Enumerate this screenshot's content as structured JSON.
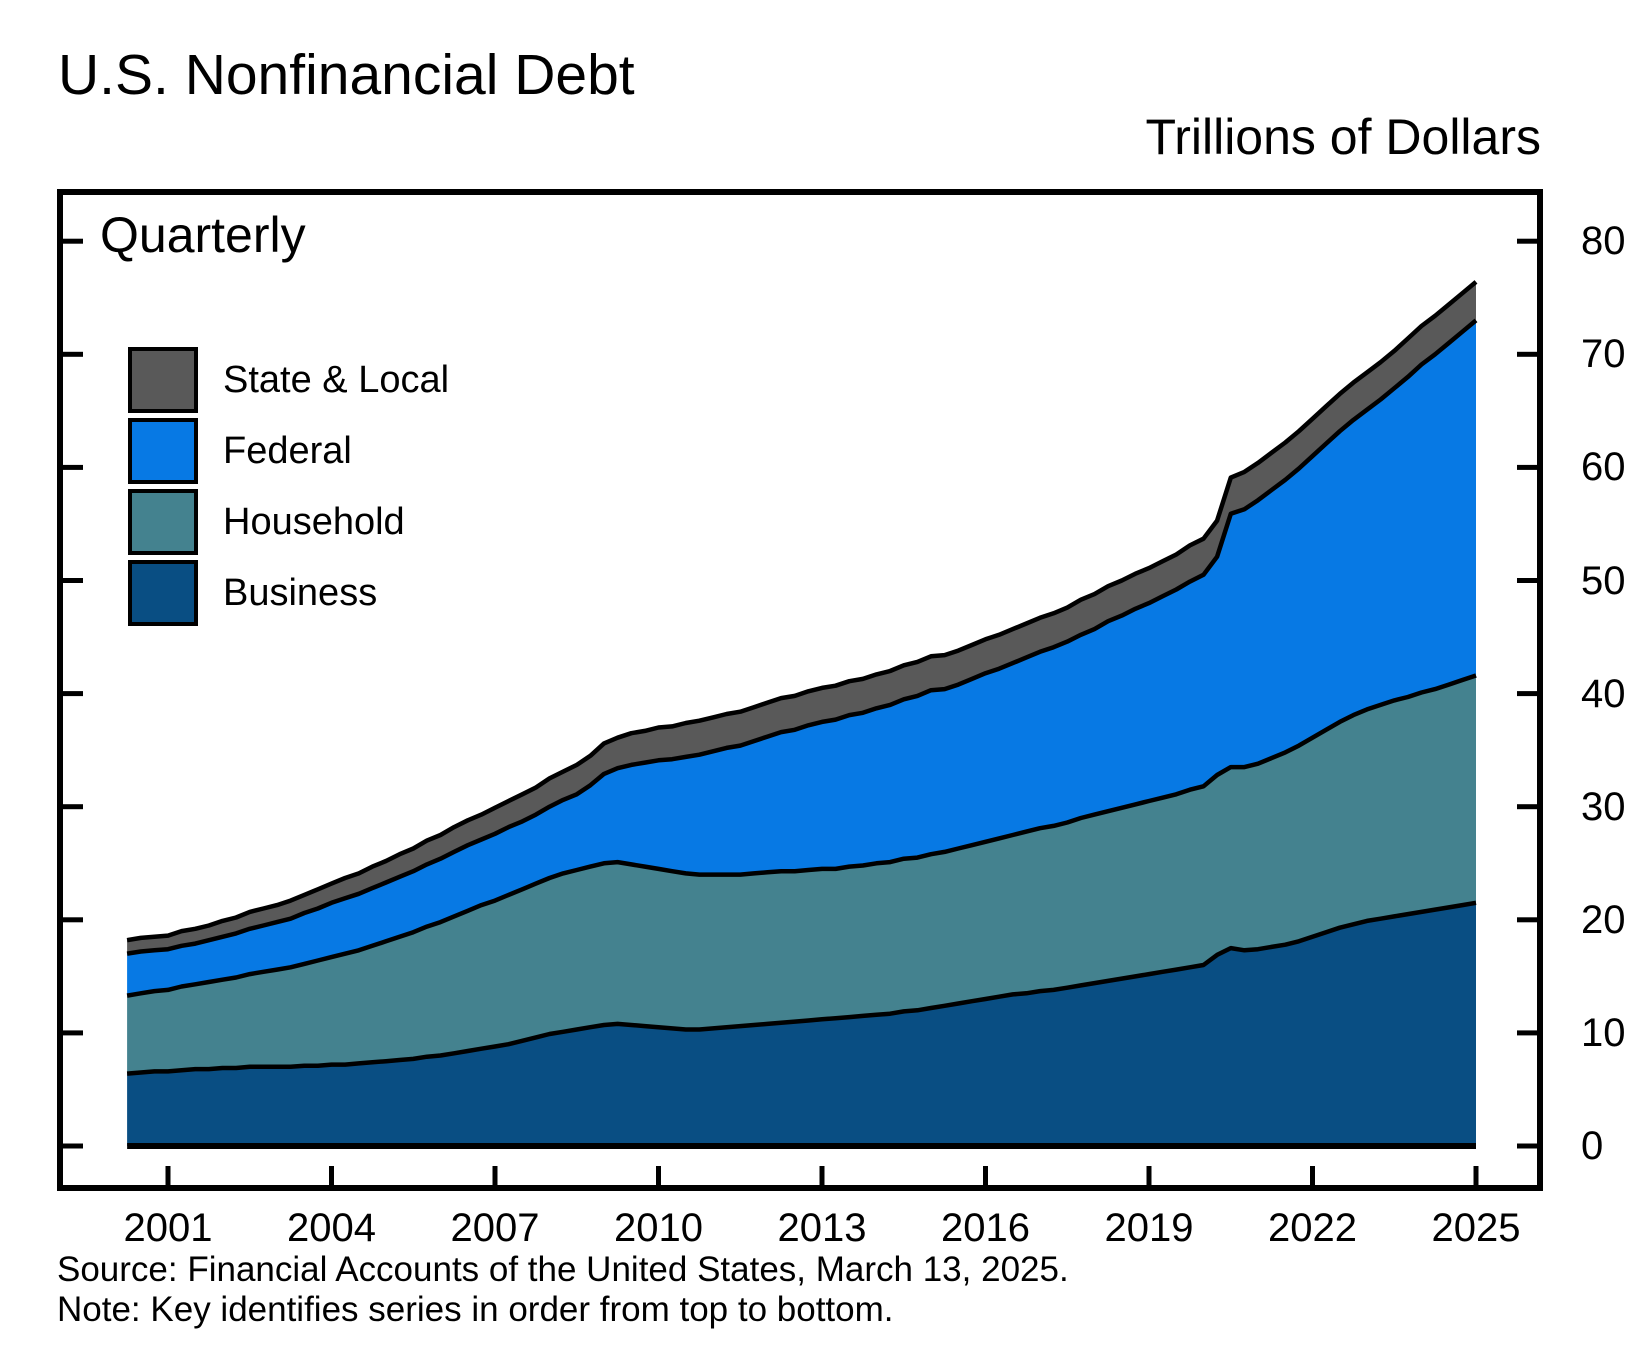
{
  "page": {
    "title": "U.S. Nonfinancial Debt",
    "units_label": "Trillions of Dollars",
    "frequency_label": "Quarterly",
    "source": "Source: Financial Accounts of the United States, March 13, 2025.",
    "note": "Note: Key identifies series in order from top to bottom."
  },
  "legend": {
    "items": [
      {
        "label": "State & Local",
        "color": "#595959"
      },
      {
        "label": "Federal",
        "color": "#0779E4"
      },
      {
        "label": "Household",
        "color": "#44828F"
      },
      {
        "label": "Business",
        "color": "#094E83"
      }
    ]
  },
  "chart_data": {
    "type": "area",
    "stacked": true,
    "title": "U.S. Nonfinancial Debt",
    "ylabel": "Trillions of Dollars",
    "frequency": "Quarterly",
    "grid": false,
    "legend_position": "upper-left",
    "x_start_year": 2000.25,
    "x_step_years": 0.25,
    "xlim": [
      1999.0,
      2026.2
    ],
    "ylim": [
      0,
      84
    ],
    "x_ticks": [
      2001,
      2004,
      2007,
      2010,
      2013,
      2016,
      2019,
      2022,
      2025
    ],
    "y_ticks": [
      0,
      10,
      20,
      30,
      40,
      50,
      60,
      70,
      80
    ],
    "stack_order_bottom_to_top": [
      "Business",
      "Household",
      "Federal",
      "State & Local"
    ],
    "series": [
      {
        "name": "Business",
        "color": "#094E83",
        "values": [
          6.4,
          6.5,
          6.6,
          6.6,
          6.7,
          6.8,
          6.8,
          6.9,
          6.9,
          7.0,
          7.0,
          7.0,
          7.0,
          7.1,
          7.1,
          7.2,
          7.2,
          7.3,
          7.4,
          7.5,
          7.6,
          7.7,
          7.9,
          8.0,
          8.2,
          8.4,
          8.6,
          8.8,
          9.0,
          9.3,
          9.6,
          9.9,
          10.1,
          10.3,
          10.5,
          10.7,
          10.8,
          10.7,
          10.6,
          10.5,
          10.4,
          10.3,
          10.3,
          10.4,
          10.5,
          10.6,
          10.7,
          10.8,
          10.9,
          11.0,
          11.1,
          11.2,
          11.3,
          11.4,
          11.5,
          11.6,
          11.7,
          11.9,
          12.0,
          12.2,
          12.4,
          12.6,
          12.8,
          13.0,
          13.2,
          13.4,
          13.5,
          13.7,
          13.8,
          14.0,
          14.2,
          14.4,
          14.6,
          14.8,
          15.0,
          15.2,
          15.4,
          15.6,
          15.8,
          16.0,
          16.9,
          17.5,
          17.3,
          17.4,
          17.6,
          17.8,
          18.1,
          18.5,
          18.9,
          19.3,
          19.6,
          19.9,
          20.1,
          20.3,
          20.5,
          20.7,
          20.9,
          21.1,
          21.3,
          21.5
        ]
      },
      {
        "name": "Household",
        "color": "#44828F",
        "values": [
          6.9,
          7.0,
          7.1,
          7.2,
          7.4,
          7.5,
          7.7,
          7.8,
          8.0,
          8.2,
          8.4,
          8.6,
          8.8,
          9.0,
          9.3,
          9.5,
          9.8,
          10.0,
          10.3,
          10.6,
          10.9,
          11.2,
          11.5,
          11.8,
          12.1,
          12.4,
          12.7,
          12.9,
          13.2,
          13.4,
          13.6,
          13.8,
          14.0,
          14.1,
          14.2,
          14.3,
          14.3,
          14.2,
          14.1,
          14.0,
          13.9,
          13.8,
          13.7,
          13.6,
          13.5,
          13.4,
          13.4,
          13.4,
          13.4,
          13.3,
          13.3,
          13.3,
          13.2,
          13.3,
          13.3,
          13.4,
          13.4,
          13.5,
          13.5,
          13.6,
          13.6,
          13.7,
          13.8,
          13.9,
          14.0,
          14.1,
          14.3,
          14.4,
          14.5,
          14.6,
          14.8,
          14.9,
          15.0,
          15.1,
          15.2,
          15.3,
          15.4,
          15.5,
          15.7,
          15.8,
          15.9,
          16.0,
          16.2,
          16.4,
          16.7,
          17.0,
          17.3,
          17.6,
          17.9,
          18.2,
          18.5,
          18.7,
          18.9,
          19.1,
          19.2,
          19.4,
          19.5,
          19.7,
          19.9,
          20.1
        ]
      },
      {
        "name": "Federal",
        "color": "#0779E4",
        "values": [
          3.7,
          3.7,
          3.6,
          3.6,
          3.6,
          3.6,
          3.7,
          3.8,
          3.9,
          4.0,
          4.1,
          4.2,
          4.3,
          4.5,
          4.6,
          4.8,
          4.9,
          5.0,
          5.1,
          5.2,
          5.3,
          5.4,
          5.5,
          5.6,
          5.7,
          5.8,
          5.8,
          5.9,
          6.0,
          6.0,
          6.1,
          6.3,
          6.5,
          6.7,
          7.2,
          7.9,
          8.3,
          8.8,
          9.2,
          9.6,
          9.9,
          10.3,
          10.6,
          10.9,
          11.2,
          11.4,
          11.7,
          12.0,
          12.3,
          12.5,
          12.8,
          13.0,
          13.2,
          13.4,
          13.5,
          13.7,
          13.9,
          14.1,
          14.3,
          14.5,
          14.4,
          14.5,
          14.7,
          14.9,
          15.0,
          15.2,
          15.4,
          15.6,
          15.8,
          16.0,
          16.2,
          16.4,
          16.8,
          17.0,
          17.3,
          17.5,
          17.8,
          18.1,
          18.4,
          18.7,
          19.3,
          22.4,
          22.8,
          23.3,
          23.7,
          24.1,
          24.5,
          24.9,
          25.3,
          25.7,
          26.1,
          26.5,
          27.0,
          27.6,
          28.3,
          29.0,
          29.6,
          30.2,
          30.8,
          31.4
        ]
      },
      {
        "name": "State & Local",
        "color": "#595959",
        "values": [
          1.2,
          1.2,
          1.2,
          1.2,
          1.3,
          1.3,
          1.3,
          1.4,
          1.4,
          1.5,
          1.5,
          1.5,
          1.6,
          1.6,
          1.7,
          1.7,
          1.8,
          1.8,
          1.9,
          1.9,
          2.0,
          2.0,
          2.1,
          2.1,
          2.2,
          2.2,
          2.2,
          2.3,
          2.3,
          2.4,
          2.4,
          2.5,
          2.5,
          2.6,
          2.6,
          2.7,
          2.7,
          2.8,
          2.8,
          2.9,
          2.9,
          3.0,
          3.0,
          3.0,
          3.0,
          3.0,
          3.0,
          3.0,
          3.0,
          3.0,
          3.0,
          3.0,
          3.0,
          3.0,
          3.0,
          3.0,
          3.0,
          3.0,
          3.0,
          3.0,
          3.0,
          3.0,
          3.0,
          3.0,
          3.0,
          3.0,
          3.0,
          3.0,
          3.0,
          3.0,
          3.1,
          3.1,
          3.1,
          3.1,
          3.1,
          3.1,
          3.1,
          3.1,
          3.2,
          3.2,
          3.2,
          3.2,
          3.3,
          3.3,
          3.3,
          3.3,
          3.3,
          3.3,
          3.3,
          3.3,
          3.3,
          3.3,
          3.3,
          3.3,
          3.4,
          3.4,
          3.4,
          3.4,
          3.4,
          3.4
        ]
      }
    ]
  }
}
